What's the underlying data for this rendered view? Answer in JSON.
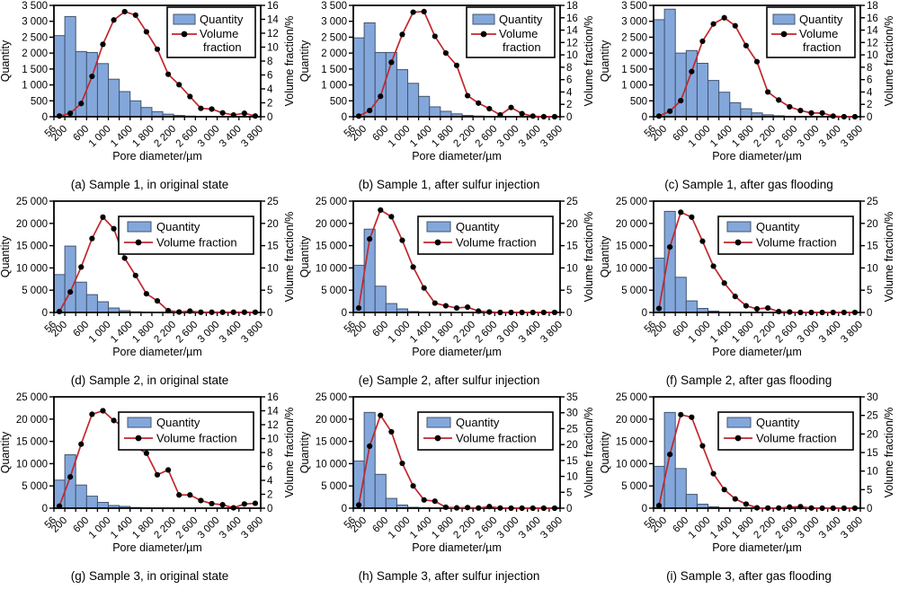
{
  "figure": {
    "background": "#ffffff",
    "legend": {
      "quantity_label": "Quantity",
      "volume_label": "Volume fraction",
      "volume_label_wrapped": [
        "Volume",
        "fraction"
      ]
    },
    "axis": {
      "x_label": "Pore diameter/µm",
      "left_label": "Quantity",
      "right_label": "Volume fraction/%",
      "x_tick_labels": [
        "56",
        "200",
        "600",
        "1 000",
        "1 400",
        "1 800",
        "2 200",
        "2 600",
        "3 000",
        "3 400",
        "3 800"
      ],
      "x_labeled_edge_indices": [
        0,
        1,
        3,
        5,
        7,
        9,
        11,
        13,
        15,
        17,
        19
      ],
      "bin_edges_um": [
        56,
        200,
        400,
        600,
        800,
        1000,
        1200,
        1400,
        1600,
        1800,
        2000,
        2200,
        2400,
        2600,
        2800,
        3000,
        3200,
        3400,
        3600,
        3800
      ]
    },
    "styles": {
      "bar_fill": "#84A7DB",
      "bar_stroke": "#41546E",
      "line_color": "#C1272D",
      "marker_color": "#000000",
      "axis_color": "#000000",
      "legend_border": "#000000",
      "legend_fill": "#ffffff"
    }
  },
  "chart_data": [
    {
      "type": "histogram+line",
      "caption": "(a) Sample 1, in original state",
      "legend_wrap": true,
      "left_axis": {
        "max": 3500,
        "ticks": [
          "0",
          "500",
          "1 000",
          "1 500",
          "2 000",
          "2 500",
          "3 000",
          "3 500"
        ]
      },
      "right_axis": {
        "max": 16,
        "ticks": [
          "0",
          "2",
          "4",
          "6",
          "8",
          "10",
          "12",
          "14",
          "16"
        ]
      },
      "quantity": [
        2550,
        3150,
        2050,
        2020,
        1670,
        1180,
        790,
        500,
        290,
        160,
        80,
        40,
        20,
        10,
        5,
        0,
        0,
        0,
        0
      ],
      "volume_fraction": [
        0.1,
        0.5,
        1.9,
        5.8,
        10.4,
        13.9,
        15.1,
        14.6,
        12.2,
        9.7,
        6.1,
        4.6,
        2.9,
        1.2,
        1.1,
        0.55,
        0.25,
        0.5,
        0.1
      ]
    },
    {
      "type": "histogram+line",
      "caption": "(b) Sample 1, after sulfur injection",
      "legend_wrap": true,
      "left_axis": {
        "max": 3500,
        "ticks": [
          "0",
          "500",
          "1 000",
          "1 500",
          "2 000",
          "2 500",
          "3 000",
          "3 500"
        ]
      },
      "right_axis": {
        "max": 18,
        "ticks": [
          "0",
          "2",
          "4",
          "6",
          "8",
          "10",
          "12",
          "14",
          "16",
          "18"
        ]
      },
      "quantity": [
        2480,
        2950,
        2020,
        2020,
        1480,
        1050,
        640,
        310,
        170,
        90,
        40,
        20,
        10,
        5,
        0,
        0,
        0,
        0,
        0
      ],
      "volume_fraction": [
        0.1,
        1.0,
        3.3,
        8.8,
        13.3,
        16.9,
        17.0,
        13.0,
        10.3,
        8.3,
        3.4,
        2.2,
        1.3,
        0.3,
        1.5,
        0.5,
        0.1,
        0.0,
        0.0
      ]
    },
    {
      "type": "histogram+line",
      "caption": "(c) Sample 1, after gas flooding",
      "legend_wrap": true,
      "left_axis": {
        "max": 3500,
        "ticks": [
          "0",
          "500",
          "1 000",
          "1 500",
          "2 000",
          "2 500",
          "3 000",
          "3 500"
        ]
      },
      "right_axis": {
        "max": 18,
        "ticks": [
          "0",
          "2",
          "4",
          "6",
          "8",
          "10",
          "12",
          "14",
          "16",
          "18"
        ]
      },
      "quantity": [
        3050,
        3380,
        2000,
        2080,
        1680,
        1140,
        770,
        440,
        250,
        120,
        60,
        30,
        15,
        5,
        0,
        0,
        0,
        0,
        0
      ],
      "volume_fraction": [
        0.1,
        0.9,
        2.6,
        7.3,
        12.2,
        15.0,
        16.0,
        14.7,
        11.5,
        8.9,
        4.0,
        2.7,
        1.6,
        1.0,
        0.6,
        0.6,
        0.1,
        0.0,
        0.0
      ]
    },
    {
      "type": "histogram+line",
      "caption": "(d) Sample 2, in original state",
      "legend_wrap": false,
      "left_axis": {
        "max": 25000,
        "ticks": [
          "0",
          "5 000",
          "10 000",
          "15 000",
          "20 000",
          "25 000"
        ]
      },
      "right_axis": {
        "max": 25,
        "ticks": [
          "0",
          "5",
          "10",
          "15",
          "20",
          "25"
        ]
      },
      "quantity": [
        8500,
        14900,
        6800,
        4000,
        2400,
        1000,
        400,
        150,
        60,
        20,
        10,
        0,
        0,
        0,
        0,
        0,
        0,
        0,
        0
      ],
      "volume_fraction": [
        0.2,
        4.6,
        10.2,
        16.6,
        21.4,
        18.8,
        12.2,
        8.3,
        4.2,
        2.6,
        0.4,
        0.1,
        0.3,
        0.05,
        0.05,
        0.05,
        0.05,
        0.05,
        0.05
      ]
    },
    {
      "type": "histogram+line",
      "caption": "(e) Sample 2, after sulfur injection",
      "legend_wrap": false,
      "left_axis": {
        "max": 25000,
        "ticks": [
          "0",
          "5 000",
          "10 000",
          "15 000",
          "20 000",
          "25 000"
        ]
      },
      "right_axis": {
        "max": 25,
        "ticks": [
          "0",
          "5",
          "10",
          "15",
          "20",
          "25"
        ]
      },
      "quantity": [
        10600,
        18700,
        5900,
        2000,
        800,
        200,
        80,
        30,
        10,
        0,
        0,
        0,
        0,
        0,
        0,
        0,
        0,
        0,
        0
      ],
      "volume_fraction": [
        1.0,
        16.5,
        23.0,
        21.5,
        16.2,
        10.2,
        5.5,
        2.1,
        1.5,
        1.0,
        1.2,
        0.3,
        0.1,
        0.0,
        0.0,
        0.0,
        0.0,
        0.0,
        0.0
      ]
    },
    {
      "type": "histogram+line",
      "caption": "(f) Sample 2, after gas flooding",
      "legend_wrap": false,
      "left_axis": {
        "max": 25000,
        "ticks": [
          "0",
          "5 000",
          "10 000",
          "15 000",
          "20 000",
          "25 000"
        ]
      },
      "right_axis": {
        "max": 25,
        "ticks": [
          "0",
          "5",
          "10",
          "15",
          "20",
          "25"
        ]
      },
      "quantity": [
        12200,
        22700,
        7900,
        2600,
        900,
        300,
        100,
        40,
        10,
        0,
        0,
        0,
        0,
        0,
        0,
        0,
        0,
        0,
        0
      ],
      "volume_fraction": [
        0.9,
        14.7,
        22.5,
        21.4,
        16.0,
        10.4,
        6.6,
        3.6,
        1.5,
        0.8,
        1.0,
        0.2,
        0.1,
        0.0,
        0.0,
        0.0,
        0.0,
        0.0,
        0.0
      ]
    },
    {
      "type": "histogram+line",
      "caption": "(g) Sample 3, in original state",
      "legend_wrap": false,
      "left_axis": {
        "max": 25000,
        "ticks": [
          "0",
          "5 000",
          "10 000",
          "15 000",
          "20 000",
          "25 000"
        ]
      },
      "right_axis": {
        "max": 16,
        "ticks": [
          "0",
          "2",
          "4",
          "6",
          "8",
          "10",
          "12",
          "14",
          "16"
        ]
      },
      "quantity": [
        6300,
        12000,
        5200,
        2700,
        1300,
        600,
        400,
        150,
        60,
        20,
        10,
        0,
        0,
        0,
        0,
        0,
        0,
        0,
        0
      ],
      "volume_fraction": [
        0.3,
        4.5,
        9.2,
        13.5,
        14.0,
        12.6,
        11.6,
        8.8,
        7.9,
        4.8,
        5.5,
        1.9,
        1.9,
        1.1,
        0.65,
        0.5,
        0.05,
        0.6,
        0.7
      ]
    },
    {
      "type": "histogram+line",
      "caption": "(h) Sample 3, after sulfur injection",
      "legend_wrap": false,
      "left_axis": {
        "max": 25000,
        "ticks": [
          "0",
          "5 000",
          "10 000",
          "15 000",
          "20 000",
          "25 000"
        ]
      },
      "right_axis": {
        "max": 35,
        "ticks": [
          "0",
          "5",
          "10",
          "15",
          "20",
          "25",
          "30",
          "35"
        ]
      },
      "quantity": [
        10600,
        21500,
        7600,
        2200,
        700,
        200,
        80,
        30,
        10,
        0,
        0,
        0,
        0,
        0,
        0,
        0,
        0,
        0,
        0
      ],
      "volume_fraction": [
        1.0,
        19.5,
        29.2,
        24.0,
        14.1,
        7.0,
        2.6,
        2.2,
        0.3,
        0.1,
        0.2,
        0.05,
        0.5,
        0.05,
        0.0,
        0.0,
        0.0,
        0.0,
        0.0
      ]
    },
    {
      "type": "histogram+line",
      "caption": "(i) Sample 3, after gas flooding",
      "legend_wrap": false,
      "left_axis": {
        "max": 25000,
        "ticks": [
          "0",
          "5 000",
          "10 000",
          "15 000",
          "20 000",
          "25 000"
        ]
      },
      "right_axis": {
        "max": 30,
        "ticks": [
          "0",
          "5",
          "10",
          "15",
          "20",
          "25",
          "30"
        ]
      },
      "quantity": [
        9400,
        21500,
        8900,
        3100,
        900,
        300,
        100,
        40,
        10,
        0,
        0,
        0,
        0,
        0,
        0,
        0,
        0,
        0,
        0
      ],
      "volume_fraction": [
        0.7,
        14.5,
        25.2,
        24.5,
        16.8,
        9.3,
        5.0,
        2.5,
        1.1,
        0.1,
        0.05,
        0.05,
        0.3,
        0.4,
        0.05,
        0.0,
        0.0,
        0.0,
        0.0
      ]
    }
  ]
}
